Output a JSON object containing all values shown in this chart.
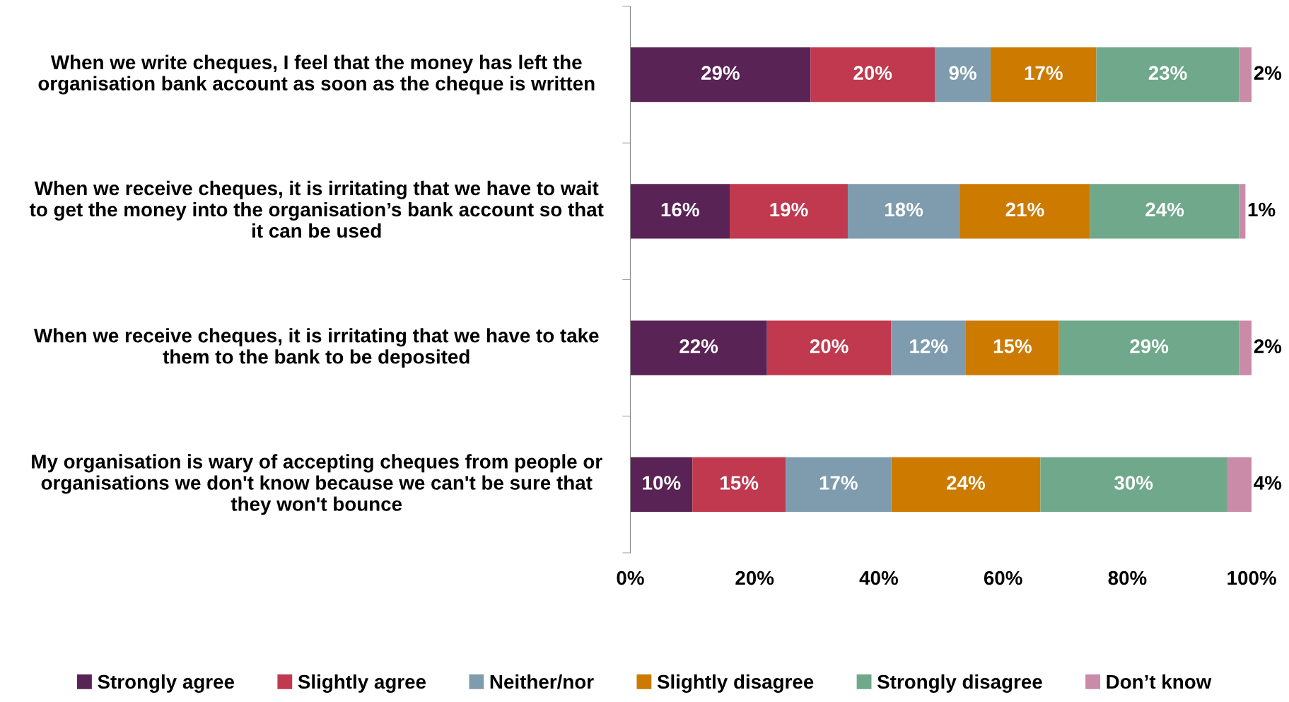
{
  "chart_data": {
    "type": "bar",
    "orientation": "horizontal",
    "stacked": true,
    "categories": [
      "When we write cheques, I feel that the money has left the\norganisation bank account as soon as the cheque is written",
      "When we receive cheques, it is irritating that we have to wait\nto get the money into the organisation’s bank account so that\nit can be used",
      "When we receive cheques, it is irritating that we have to take\nthem to the bank to be deposited",
      "My organisation is wary of accepting cheques from people or\norganisations we don't know because we can't be sure that\nthey won't bounce"
    ],
    "series": [
      {
        "name": "Strongly agree",
        "color": "#5a2355",
        "values": [
          29,
          16,
          22,
          10
        ],
        "value_labels": [
          "29%",
          "16%",
          "22%",
          "10%"
        ]
      },
      {
        "name": "Slightly agree",
        "color": "#c0394e",
        "values": [
          20,
          19,
          20,
          15
        ],
        "value_labels": [
          "20%",
          "19%",
          "20%",
          "15%"
        ]
      },
      {
        "name": "Neither/nor",
        "color": "#7f9cae",
        "values": [
          9,
          18,
          12,
          17
        ],
        "value_labels": [
          "9%",
          "18%",
          "12%",
          "17%"
        ]
      },
      {
        "name": "Slightly disagree",
        "color": "#cc7a00",
        "values": [
          17,
          21,
          15,
          24
        ],
        "value_labels": [
          "17%",
          "21%",
          "15%",
          "24%"
        ]
      },
      {
        "name": "Strongly disagree",
        "color": "#6fa88a",
        "values": [
          23,
          24,
          29,
          30
        ],
        "value_labels": [
          "23%",
          "24%",
          "29%",
          "30%"
        ]
      },
      {
        "name": "Don’t know",
        "color": "#c98ba8",
        "values": [
          2,
          1,
          2,
          4
        ],
        "value_labels": [
          "2%",
          "1%",
          "2%",
          "4%"
        ]
      }
    ],
    "xlim": [
      0,
      100
    ],
    "xticks": [
      {
        "value": 0,
        "label": "0%"
      },
      {
        "value": 20,
        "label": "20%"
      },
      {
        "value": 40,
        "label": "40%"
      },
      {
        "value": 60,
        "label": "60%"
      },
      {
        "value": 80,
        "label": "80%"
      },
      {
        "value": 100,
        "label": "100%"
      }
    ],
    "grid": false,
    "legend": "bottom"
  }
}
